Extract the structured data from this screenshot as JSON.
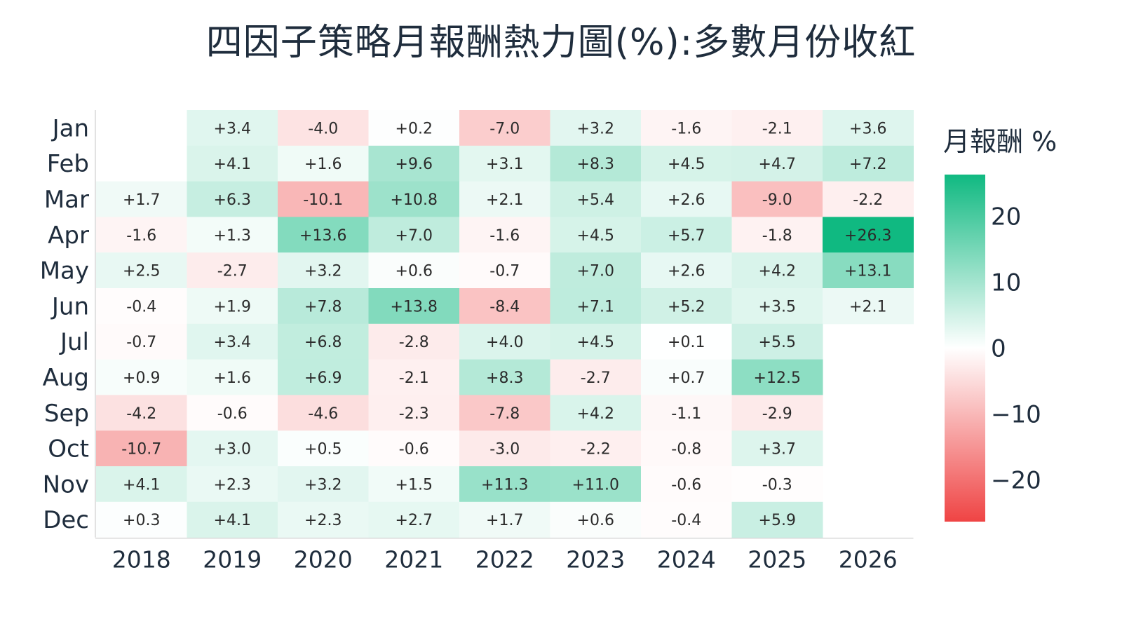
{
  "chart_data": {
    "type": "heatmap",
    "title": "四因子策略月報酬熱力圖(%):多數月份收紅",
    "x_categories": [
      "2018",
      "2019",
      "2020",
      "2021",
      "2022",
      "2023",
      "2024",
      "2025",
      "2026"
    ],
    "y_categories": [
      "Jan",
      "Feb",
      "Mar",
      "Apr",
      "May",
      "Jun",
      "Jul",
      "Aug",
      "Sep",
      "Oct",
      "Nov",
      "Dec"
    ],
    "values": [
      [
        null,
        3.4,
        -4.0,
        0.2,
        -7.0,
        3.2,
        -1.6,
        -2.1,
        3.6
      ],
      [
        null,
        4.1,
        1.6,
        9.6,
        3.1,
        8.3,
        4.5,
        4.7,
        7.2
      ],
      [
        1.7,
        6.3,
        -10.1,
        10.8,
        2.1,
        5.4,
        2.6,
        -9.0,
        -2.2
      ],
      [
        -1.6,
        1.3,
        13.6,
        7.0,
        -1.6,
        4.5,
        5.7,
        -1.8,
        26.3
      ],
      [
        2.5,
        -2.7,
        3.2,
        0.6,
        -0.7,
        7.0,
        2.6,
        4.2,
        13.1
      ],
      [
        -0.4,
        1.9,
        7.8,
        13.8,
        -8.4,
        7.1,
        5.2,
        3.5,
        2.1
      ],
      [
        -0.7,
        3.4,
        6.8,
        -2.8,
        4.0,
        4.5,
        0.1,
        5.5,
        null
      ],
      [
        0.9,
        1.6,
        6.9,
        -2.1,
        8.3,
        -2.7,
        0.7,
        12.5,
        null
      ],
      [
        -4.2,
        -0.6,
        -4.6,
        -2.3,
        -7.8,
        4.2,
        -1.1,
        -2.9,
        null
      ],
      [
        -10.7,
        3.0,
        0.5,
        -0.6,
        -3.0,
        -2.2,
        -0.8,
        3.7,
        null
      ],
      [
        4.1,
        2.3,
        3.2,
        1.5,
        11.3,
        11.0,
        -0.6,
        -0.3,
        null
      ],
      [
        0.3,
        4.1,
        2.3,
        2.7,
        1.7,
        0.6,
        -0.4,
        5.9,
        null
      ]
    ],
    "colorbar": {
      "title": "月報酬 %",
      "range": [
        -26.3,
        26.3
      ],
      "ticks": [
        20,
        10,
        0,
        -10,
        -20
      ],
      "tick_labels": [
        "20",
        "10",
        "0",
        "−10",
        "−20"
      ],
      "color_high": "#10b981",
      "color_mid": "#ffffff",
      "color_low": "#ef4444"
    }
  }
}
